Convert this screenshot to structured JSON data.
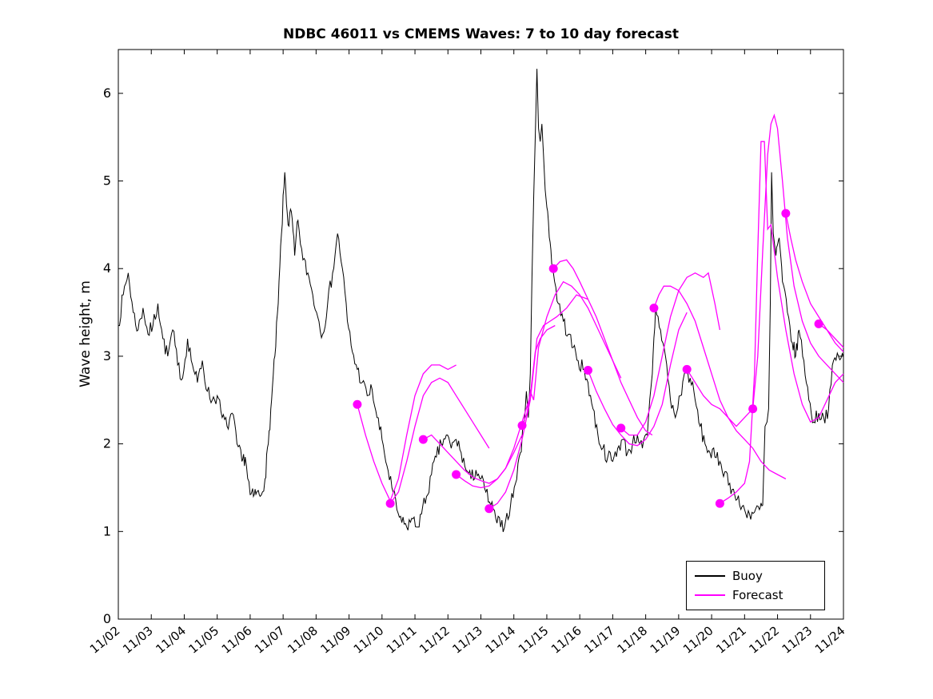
{
  "figure": {
    "title": "NDBC 46011 vs CMEMS Waves: 7 to 10 day forecast",
    "ylabel": "Wave height, m",
    "legend": {
      "buoy_label": "Buoy",
      "forecast_label": "Forecast",
      "position": "lower right"
    },
    "colors": {
      "buoy": "#000000",
      "forecast": "#FF00FF",
      "axes": "#000000",
      "background": "#FFFFFF"
    }
  },
  "chart_data": {
    "type": "line",
    "title": "NDBC 46011 vs CMEMS Waves: 7 to 10 day forecast",
    "xlabel": "",
    "ylabel": "Wave height, m",
    "x_unit": "days since 11/02",
    "xlim": [
      0,
      22
    ],
    "ylim": [
      0,
      6.5
    ],
    "yticks": [
      0,
      1,
      2,
      3,
      4,
      5,
      6
    ],
    "xticks": [
      0,
      1,
      2,
      3,
      4,
      5,
      6,
      7,
      8,
      9,
      10,
      11,
      12,
      13,
      14,
      15,
      16,
      17,
      18,
      19,
      20,
      21,
      22
    ],
    "xtick_labels": [
      "11/02",
      "11/03",
      "11/04",
      "11/05",
      "11/06",
      "11/07",
      "11/08",
      "11/09",
      "11/10",
      "11/11",
      "11/12",
      "11/13",
      "11/14",
      "11/15",
      "11/16",
      "11/17",
      "11/18",
      "11/19",
      "11/20",
      "11/21",
      "11/22",
      "11/23",
      "11/24"
    ],
    "grid": false,
    "legend_position": "lower right",
    "noise": {
      "seed": 7,
      "amplitude": 0.09,
      "subdivisions": 3
    },
    "series": [
      {
        "name": "Buoy",
        "color": "#000000",
        "style": "noisy-line",
        "x": [
          0,
          0.15,
          0.3,
          0.45,
          0.6,
          0.75,
          0.9,
          1.05,
          1.2,
          1.35,
          1.5,
          1.65,
          1.8,
          1.95,
          2.1,
          2.25,
          2.4,
          2.55,
          2.7,
          2.85,
          3,
          3.15,
          3.3,
          3.45,
          3.6,
          3.75,
          3.85,
          4,
          4.1,
          4.2,
          4.3,
          4.45,
          4.55,
          4.65,
          4.75,
          4.85,
          4.95,
          5.05,
          5.15,
          5.25,
          5.35,
          5.45,
          5.6,
          5.75,
          5.9,
          6.05,
          6.2,
          6.35,
          6.5,
          6.65,
          6.8,
          6.95,
          7.1,
          7.25,
          7.4,
          7.55,
          7.7,
          7.85,
          8,
          8.15,
          8.3,
          8.45,
          8.6,
          8.75,
          8.9,
          9.05,
          9.2,
          9.35,
          9.5,
          9.65,
          9.8,
          9.95,
          10.1,
          10.25,
          10.4,
          10.55,
          10.7,
          10.85,
          11,
          11.15,
          11.3,
          11.45,
          11.6,
          11.75,
          11.9,
          12.05,
          12.2,
          12.3,
          12.38,
          12.44,
          12.5,
          12.55,
          12.6,
          12.65,
          12.7,
          12.75,
          12.8,
          12.85,
          12.9,
          12.95,
          13,
          13.1,
          13.2,
          13.35,
          13.5,
          13.65,
          13.8,
          13.95,
          14.1,
          14.25,
          14.4,
          14.55,
          14.7,
          14.85,
          15,
          15.15,
          15.3,
          15.45,
          15.6,
          15.75,
          15.9,
          16.05,
          16.2,
          16.3,
          16.45,
          16.6,
          16.75,
          16.9,
          17.05,
          17.2,
          17.35,
          17.5,
          17.65,
          17.8,
          17.95,
          18.1,
          18.25,
          18.4,
          18.55,
          18.7,
          18.85,
          19,
          19.15,
          19.3,
          19.45,
          19.55,
          19.62,
          19.68,
          19.73,
          19.78,
          19.82,
          19.87,
          19.95,
          20.05,
          20.15,
          20.3,
          20.45,
          20.55,
          20.65,
          20.8,
          20.95,
          21.1,
          21.25,
          21.4,
          21.55,
          21.7,
          21.85,
          22
        ],
        "y": [
          3.35,
          3.7,
          3.95,
          3.5,
          3.3,
          3.55,
          3.25,
          3.35,
          3.6,
          3.2,
          3.0,
          3.3,
          2.9,
          2.75,
          3.2,
          2.9,
          2.7,
          2.95,
          2.6,
          2.5,
          2.55,
          2.3,
          2.2,
          2.35,
          2.0,
          1.8,
          1.85,
          1.42,
          1.4,
          1.45,
          1.4,
          1.6,
          2.0,
          2.5,
          3.0,
          3.6,
          4.4,
          5.1,
          4.5,
          4.65,
          4.15,
          4.55,
          4.1,
          3.95,
          3.7,
          3.45,
          3.25,
          3.6,
          3.95,
          4.4,
          4.0,
          3.4,
          3.05,
          2.85,
          2.7,
          2.55,
          2.62,
          2.3,
          2.05,
          1.75,
          1.5,
          1.25,
          1.1,
          1.05,
          1.15,
          1.05,
          1.2,
          1.4,
          1.65,
          1.85,
          2.0,
          2.1,
          1.95,
          2.05,
          1.9,
          1.7,
          1.6,
          1.7,
          1.6,
          1.45,
          1.3,
          1.15,
          1.05,
          1.12,
          1.3,
          1.55,
          1.9,
          2.25,
          2.6,
          2.3,
          2.8,
          3.9,
          4.8,
          5.5,
          6.28,
          5.6,
          5.45,
          5.65,
          5.3,
          4.9,
          4.7,
          4.3,
          3.95,
          3.6,
          3.4,
          3.25,
          3.1,
          2.95,
          2.85,
          2.7,
          2.4,
          2.1,
          1.95,
          1.85,
          1.8,
          1.95,
          2.05,
          1.9,
          2.0,
          2.1,
          1.95,
          2.1,
          2.8,
          3.55,
          3.3,
          3.0,
          2.5,
          2.3,
          2.55,
          2.85,
          2.75,
          2.5,
          2.2,
          2.0,
          1.9,
          1.85,
          1.8,
          1.68,
          1.55,
          1.42,
          1.3,
          1.25,
          1.2,
          1.22,
          1.25,
          1.3,
          2.2,
          2.25,
          2.4,
          3.6,
          5.1,
          4.4,
          4.15,
          4.35,
          3.85,
          3.5,
          3.15,
          3.0,
          3.3,
          2.95,
          2.5,
          2.25,
          2.35,
          2.3,
          2.4,
          2.95,
          3.0,
          3.0
        ]
      },
      {
        "name": "Forecast",
        "color": "#FF00FF",
        "style": "line",
        "marker_on_first_point": true,
        "runs": [
          {
            "x": [
              7.25,
              7.5,
              7.75,
              8.0,
              8.25,
              8.5,
              8.75,
              9.0,
              9.25,
              9.5,
              9.75,
              10.0,
              10.25
            ],
            "y": [
              2.45,
              2.1,
              1.8,
              1.55,
              1.35,
              1.6,
              2.1,
              2.55,
              2.8,
              2.9,
              2.9,
              2.85,
              2.9
            ]
          },
          {
            "x": [
              8.25,
              8.5,
              8.75,
              9.0,
              9.25,
              9.5,
              9.75,
              10.0,
              10.25,
              10.5,
              10.75,
              11.0,
              11.25
            ],
            "y": [
              1.32,
              1.45,
              1.8,
              2.2,
              2.55,
              2.7,
              2.75,
              2.7,
              2.55,
              2.4,
              2.25,
              2.1,
              1.95
            ]
          },
          {
            "x": [
              9.25,
              9.5,
              9.75,
              10.0,
              10.25,
              10.5,
              10.75,
              11.0,
              11.25,
              11.5,
              11.75,
              12.0,
              12.25
            ],
            "y": [
              2.05,
              2.1,
              2.0,
              1.9,
              1.8,
              1.7,
              1.62,
              1.58,
              1.55,
              1.6,
              1.72,
              1.9,
              2.1
            ]
          },
          {
            "x": [
              10.25,
              10.5,
              10.75,
              11.0,
              11.25,
              11.5,
              11.75,
              12.0,
              12.25,
              12.5,
              12.65,
              12.8,
              13.0,
              13.25
            ],
            "y": [
              1.65,
              1.58,
              1.52,
              1.5,
              1.52,
              1.6,
              1.72,
              1.95,
              2.25,
              2.55,
              3.05,
              3.2,
              3.3,
              3.35
            ]
          },
          {
            "x": [
              11.25,
              11.5,
              11.75,
              12.0,
              12.25,
              12.5,
              12.7,
              12.9,
              13.1,
              13.3,
              13.6,
              13.9,
              14.25
            ],
            "y": [
              1.26,
              1.32,
              1.45,
              1.7,
              2.05,
              2.5,
              3.2,
              3.35,
              3.4,
              3.45,
              3.55,
              3.7,
              3.65
            ]
          },
          {
            "x": [
              12.25,
              12.4,
              12.5,
              12.6,
              12.75,
              13.0,
              13.25,
              13.5,
              13.75,
              14.0,
              14.25,
              14.5,
              14.75,
              15.0,
              15.25
            ],
            "y": [
              2.21,
              2.35,
              2.6,
              2.5,
              3.1,
              3.45,
              3.7,
              3.85,
              3.8,
              3.7,
              3.55,
              3.35,
              3.15,
              2.95,
              2.75
            ]
          },
          {
            "x": [
              13.2,
              13.4,
              13.6,
              13.8,
              14.0,
              14.25,
              14.5,
              14.75,
              15.0,
              15.25,
              15.5,
              15.75,
              16.0,
              16.2
            ],
            "y": [
              4.0,
              4.08,
              4.1,
              4.0,
              3.85,
              3.65,
              3.45,
              3.2,
              2.95,
              2.7,
              2.5,
              2.3,
              2.15,
              2.1
            ]
          },
          {
            "x": [
              14.25,
              14.5,
              14.75,
              15.0,
              15.25,
              15.5,
              15.75,
              16.0,
              16.25,
              16.5,
              16.75,
              17.0,
              17.25
            ],
            "y": [
              2.84,
              2.6,
              2.4,
              2.22,
              2.1,
              2.0,
              1.98,
              2.05,
              2.2,
              2.45,
              2.9,
              3.3,
              3.5
            ]
          },
          {
            "x": [
              15.25,
              15.5,
              15.75,
              16.0,
              16.25,
              16.5,
              16.75,
              17.0,
              17.25,
              17.5,
              17.75,
              17.9,
              18.1,
              18.25
            ],
            "y": [
              2.18,
              2.1,
              2.1,
              2.25,
              2.55,
              3.0,
              3.45,
              3.75,
              3.9,
              3.95,
              3.9,
              3.95,
              3.6,
              3.3
            ]
          },
          {
            "x": [
              16.25,
              16.4,
              16.55,
              16.75,
              17.0,
              17.25,
              17.5,
              17.75,
              18.0,
              18.25,
              18.5,
              18.75,
              19.0,
              19.25
            ],
            "y": [
              3.55,
              3.7,
              3.8,
              3.8,
              3.75,
              3.6,
              3.4,
              3.1,
              2.8,
              2.5,
              2.3,
              2.2,
              2.3,
              2.4
            ]
          },
          {
            "x": [
              17.25,
              17.5,
              17.75,
              18.0,
              18.25,
              18.5,
              18.75,
              19.0,
              19.25,
              19.5,
              19.75,
              20.0,
              20.25
            ],
            "y": [
              2.85,
              2.7,
              2.55,
              2.45,
              2.4,
              2.3,
              2.15,
              2.05,
              1.95,
              1.8,
              1.7,
              1.65,
              1.6
            ]
          },
          {
            "x": [
              18.25,
              18.5,
              18.75,
              19.0,
              19.15,
              19.3,
              19.4,
              19.5,
              19.6,
              19.7,
              19.8,
              19.9,
              20.0,
              20.25,
              20.5,
              20.75,
              21.0,
              21.25,
              21.5,
              21.75,
              22.0
            ],
            "y": [
              1.32,
              1.38,
              1.45,
              1.55,
              1.8,
              2.8,
              4.2,
              5.45,
              5.45,
              4.45,
              4.5,
              4.2,
              3.9,
              3.3,
              2.8,
              2.45,
              2.25,
              2.3,
              2.5,
              2.7,
              2.8
            ]
          },
          {
            "x": [
              19.25,
              19.4,
              19.55,
              19.7,
              19.8,
              19.9,
              20.0,
              20.15,
              20.3,
              20.5,
              20.75,
              21.0,
              21.25,
              21.5,
              21.75,
              22.0
            ],
            "y": [
              2.4,
              3.0,
              4.2,
              5.3,
              5.65,
              5.75,
              5.6,
              5.0,
              4.35,
              3.8,
              3.4,
              3.15,
              3.0,
              2.9,
              2.8,
              2.7
            ]
          },
          {
            "x": [
              20.25,
              20.4,
              20.55,
              20.75,
              21.0,
              21.25,
              21.5,
              21.75,
              22.0
            ],
            "y": [
              4.63,
              4.35,
              4.1,
              3.85,
              3.6,
              3.45,
              3.3,
              3.2,
              3.1
            ]
          },
          {
            "x": [
              21.25,
              21.5,
              21.75,
              22.0
            ],
            "y": [
              3.37,
              3.3,
              3.15,
              3.05
            ]
          }
        ]
      }
    ]
  }
}
